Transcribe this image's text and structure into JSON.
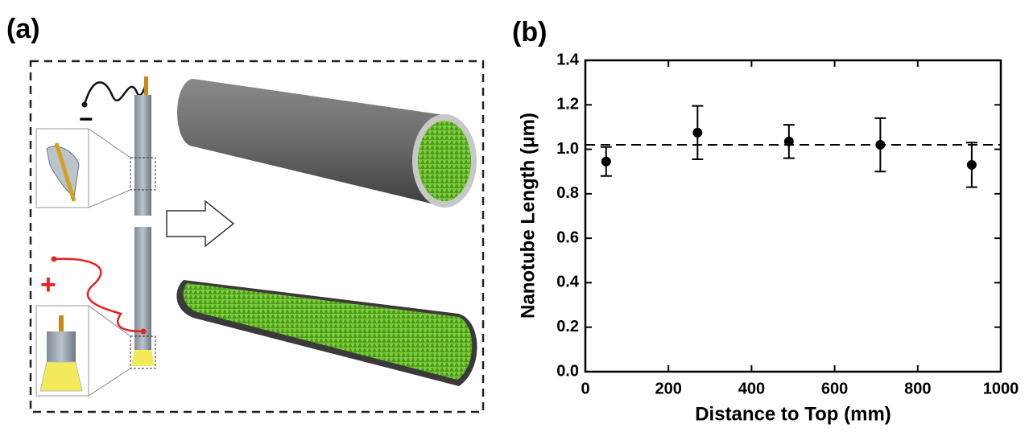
{
  "panel_a": {
    "label": "(a)",
    "minus": "−",
    "plus": "+"
  },
  "chart_data": {
    "type": "scatter",
    "panel_label": "(b)",
    "x_label": "Distance to Top (mm)",
    "y_label": "Nanotube Length (μm)",
    "x": [
      50,
      270,
      490,
      710,
      930
    ],
    "values": [
      0.945,
      1.075,
      1.035,
      1.02,
      0.93
    ],
    "errors": [
      0.065,
      0.12,
      0.075,
      0.12,
      0.1
    ],
    "color": "#000000",
    "hline": 1.02,
    "xlim": [
      0,
      1000
    ],
    "xticks": [
      0,
      200,
      400,
      600,
      800,
      1000
    ],
    "ylim": [
      0,
      1.4
    ],
    "yticks": [
      {
        "value": 0,
        "label": "0.0"
      },
      0.2,
      0.4,
      0.6,
      0.8,
      {
        "value": 1,
        "label": "1.0"
      },
      1.2,
      1.4
    ]
  }
}
